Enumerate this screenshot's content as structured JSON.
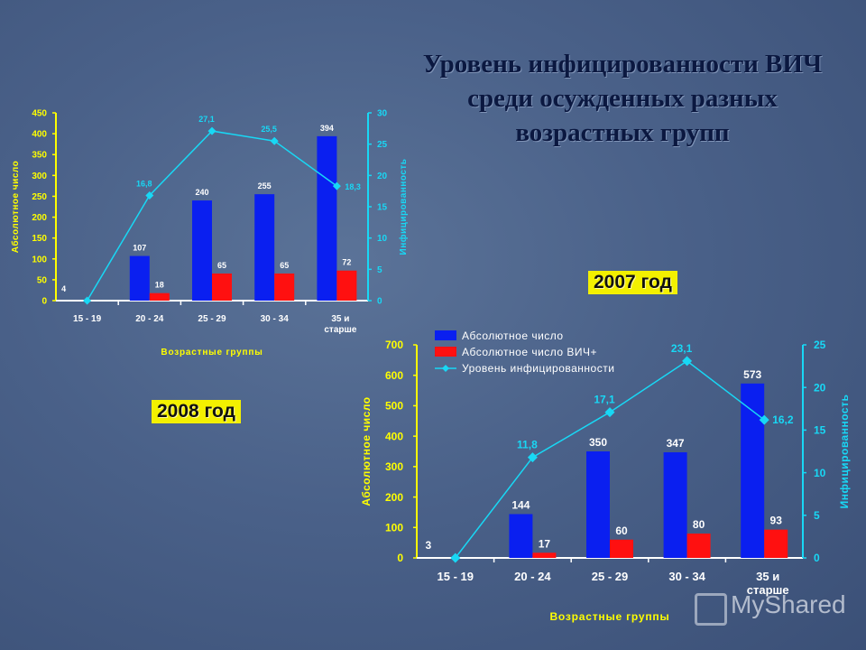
{
  "title": {
    "lines": [
      "Уровень инфицированности ВИЧ",
      "среди осужденных разных",
      "возрастных групп"
    ]
  },
  "labels": {
    "year_2007": "2007 год",
    "year_2008": "2008 год"
  },
  "watermark": "MyShared",
  "colors": {
    "bar_total": "#0a1ff0",
    "bar_hiv": "#ff1010",
    "line": "#18d8f5",
    "left_axis_text": "#ffff00",
    "right_axis_text": "#18d8f5",
    "x_labels": "#ffffff",
    "x_title": "#ffff00"
  },
  "chart_data": [
    {
      "type": "bar",
      "year_label": "2008 год",
      "categories": [
        "15 - 19",
        "20 - 24",
        "25 - 29",
        "30 - 34",
        "35 и старше"
      ],
      "series": [
        {
          "values": [
            4,
            107,
            240,
            255,
            394
          ],
          "labels": [
            "4",
            "107",
            "240",
            "255",
            "394"
          ]
        },
        {
          "values": [
            0,
            18,
            65,
            65,
            72
          ],
          "labels": [
            "",
            "18",
            "65",
            "65",
            "72"
          ]
        },
        {
          "values": [
            0,
            16.8,
            27.1,
            25.5,
            18.3
          ],
          "labels": [
            "",
            "16,8",
            "27,1",
            "25,5",
            "18,3"
          ],
          "axis": "right"
        }
      ],
      "xlabel": "Возрастные группы",
      "ylabel": "Абсолютное число",
      "y2label": "Инфицированность",
      "ylim": [
        0,
        450
      ],
      "y2lim": [
        0,
        30
      ],
      "yticks": [
        "0",
        "50",
        "100",
        "150",
        "200",
        "250",
        "300",
        "350",
        "400",
        "450"
      ],
      "y2ticks": [
        "0",
        "5",
        "10",
        "15",
        "20",
        "25",
        "30"
      ],
      "legend": "none",
      "grid": false
    },
    {
      "type": "bar",
      "year_label": "2007 год",
      "categories": [
        "15 - 19",
        "20 - 24",
        "25 - 29",
        "30 - 34",
        "35 и старше"
      ],
      "series": [
        {
          "name": "Абсолютное число",
          "values": [
            3,
            144,
            350,
            347,
            573
          ],
          "labels": [
            "3",
            "144",
            "350",
            "347",
            "573"
          ]
        },
        {
          "name": "Абсолютное число ВИЧ+",
          "values": [
            0,
            17,
            60,
            80,
            93
          ],
          "labels": [
            "",
            "17",
            "60",
            "80",
            "93"
          ]
        },
        {
          "name": "Уровень инфицированности",
          "values": [
            0,
            11.8,
            17.1,
            23.1,
            16.2
          ],
          "labels": [
            "",
            "11,8",
            "17,1",
            "23,1",
            "16,2"
          ],
          "axis": "right"
        }
      ],
      "xlabel": "Возрастные группы",
      "ylabel": "Абсолютное число",
      "y2label": "Инфицированность",
      "ylim": [
        0,
        700
      ],
      "y2lim": [
        0,
        25
      ],
      "yticks": [
        "0",
        "100",
        "200",
        "300",
        "400",
        "500",
        "600",
        "700"
      ],
      "y2ticks": [
        "0",
        "5",
        "10",
        "15",
        "20",
        "25"
      ],
      "legend": "top-left",
      "grid": false
    }
  ]
}
